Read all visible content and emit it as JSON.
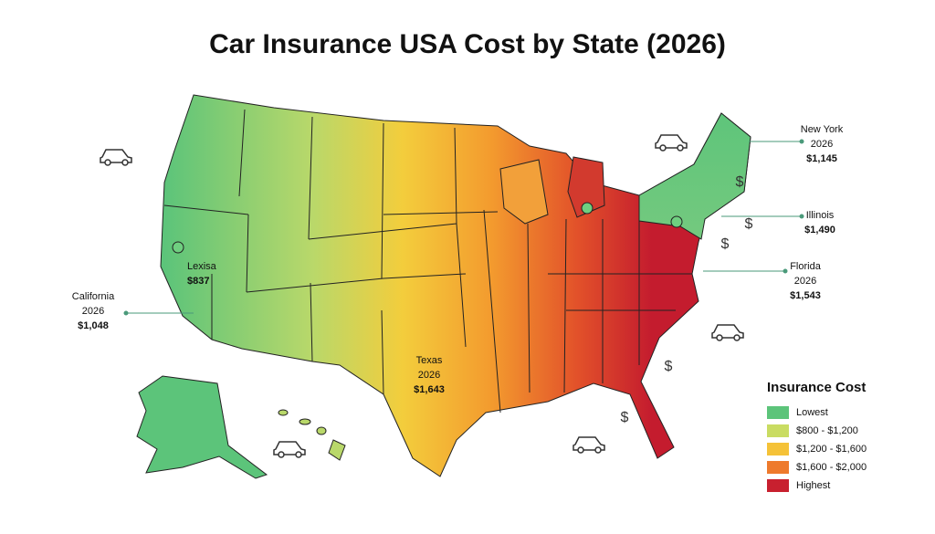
{
  "title": "Car Insurance USA Cost by State (2026)",
  "annotations": [
    {
      "lines": [
        "New York",
        "2026",
        "$1,145"
      ]
    },
    {
      "lines": [
        "Illinois",
        "$1,490"
      ]
    },
    {
      "lines": [
        "Florida",
        "2026",
        "$1,543"
      ]
    },
    {
      "lines": [
        "California",
        "2026",
        "$1,048"
      ]
    },
    {
      "lines": [
        "Lexisa",
        "$837"
      ]
    },
    {
      "lines": [
        "Texas",
        "2026",
        "$1,643"
      ]
    }
  ],
  "symbols": {
    "dollar": "$"
  },
  "legend": {
    "title": "Insurance Cost",
    "items": [
      {
        "label": "Lowest",
        "color": "#5cc47a"
      },
      {
        "label": "$800 - $1,200",
        "color": "#c9dc62"
      },
      {
        "label": "$1,200 - $1,600",
        "color": "#f5c238"
      },
      {
        "label": "$1,600 - $2,000",
        "color": "#ee7a2c"
      },
      {
        "label": "Highest",
        "color": "#c8202f"
      }
    ]
  }
}
